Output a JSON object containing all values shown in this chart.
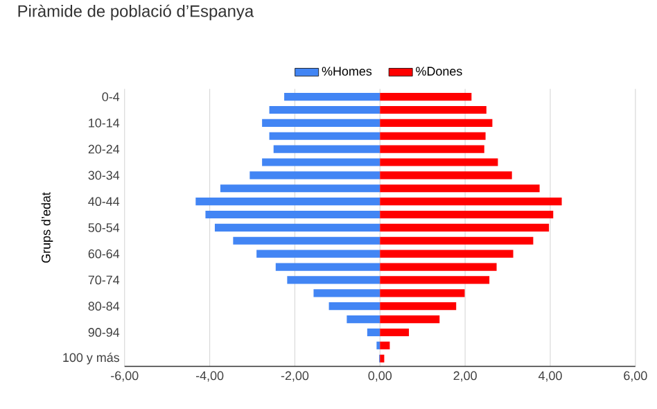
{
  "chart_data": {
    "type": "bar",
    "orientation": "horizontal",
    "title": "Piràmide de població d’Espanya",
    "ylabel": "Grups d’edat",
    "categories": [
      "0-4",
      null,
      "10-14",
      null,
      "20-24",
      null,
      "30-34",
      null,
      "40-44",
      null,
      "50-54",
      null,
      "60-64",
      null,
      "70-74",
      null,
      "80-84",
      null,
      "90-94",
      null,
      "100 y más"
    ],
    "series": [
      {
        "name": "%Homes",
        "color": "#4285f4",
        "values": [
          -2.25,
          -2.6,
          -2.77,
          -2.6,
          -2.5,
          -2.77,
          -3.06,
          -3.75,
          -4.33,
          -4.1,
          -3.88,
          -3.45,
          -2.9,
          -2.45,
          -2.18,
          -1.56,
          -1.2,
          -0.78,
          -0.3,
          -0.08,
          -0.02
        ]
      },
      {
        "name": "%Dones",
        "color": "#ff0000",
        "values": [
          2.15,
          2.5,
          2.64,
          2.48,
          2.45,
          2.77,
          3.1,
          3.75,
          4.27,
          4.07,
          3.97,
          3.6,
          3.13,
          2.74,
          2.57,
          1.99,
          1.79,
          1.4,
          0.68,
          0.23,
          0.1
        ]
      }
    ],
    "xlim": [
      -6,
      6
    ],
    "xticks": [
      {
        "value": -6,
        "label": "-6,00"
      },
      {
        "value": -4,
        "label": "-4,00"
      },
      {
        "value": -2,
        "label": "-2,00"
      },
      {
        "value": 0,
        "label": "0,00"
      },
      {
        "value": 2,
        "label": "2,00"
      },
      {
        "value": 4,
        "label": "4,00"
      },
      {
        "value": 6,
        "label": "6,00"
      }
    ],
    "grid": "x",
    "legend": "top",
    "stacked": true
  }
}
